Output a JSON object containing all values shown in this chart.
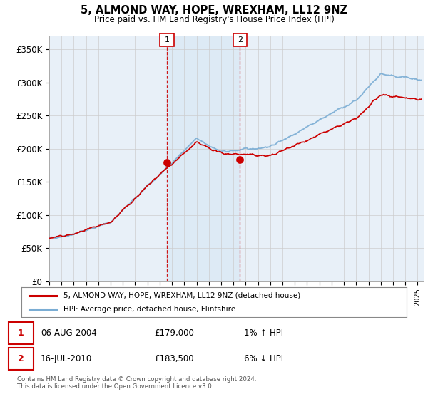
{
  "title": "5, ALMOND WAY, HOPE, WREXHAM, LL12 9NZ",
  "subtitle": "Price paid vs. HM Land Registry's House Price Index (HPI)",
  "ylim": [
    0,
    370000
  ],
  "yticks": [
    0,
    50000,
    100000,
    150000,
    200000,
    250000,
    300000,
    350000
  ],
  "ytick_labels": [
    "£0",
    "£50K",
    "£100K",
    "£150K",
    "£200K",
    "£250K",
    "£300K",
    "£350K"
  ],
  "xlim_start": 1995.0,
  "xlim_end": 2025.5,
  "transaction1": {
    "date_num": 2004.58,
    "price": 179000,
    "label": "1",
    "color": "#cc0000"
  },
  "transaction2": {
    "date_num": 2010.54,
    "price": 183500,
    "label": "2",
    "color": "#cc0000"
  },
  "legend_entry1": "5, ALMOND WAY, HOPE, WREXHAM, LL12 9NZ (detached house)",
  "legend_entry2": "HPI: Average price, detached house, Flintshire",
  "table_row1": [
    "1",
    "06-AUG-2004",
    "£179,000",
    "1% ↑ HPI"
  ],
  "table_row2": [
    "2",
    "16-JUL-2010",
    "£183,500",
    "6% ↓ HPI"
  ],
  "footnote": "Contains HM Land Registry data © Crown copyright and database right 2024.\nThis data is licensed under the Open Government Licence v3.0.",
  "line_color_red": "#cc0000",
  "line_color_blue": "#7aadd4",
  "shade_color": "#ddeaf5",
  "grid_color": "#cccccc",
  "background_plot": "#e8f0f8",
  "vline_color": "#cc0000"
}
